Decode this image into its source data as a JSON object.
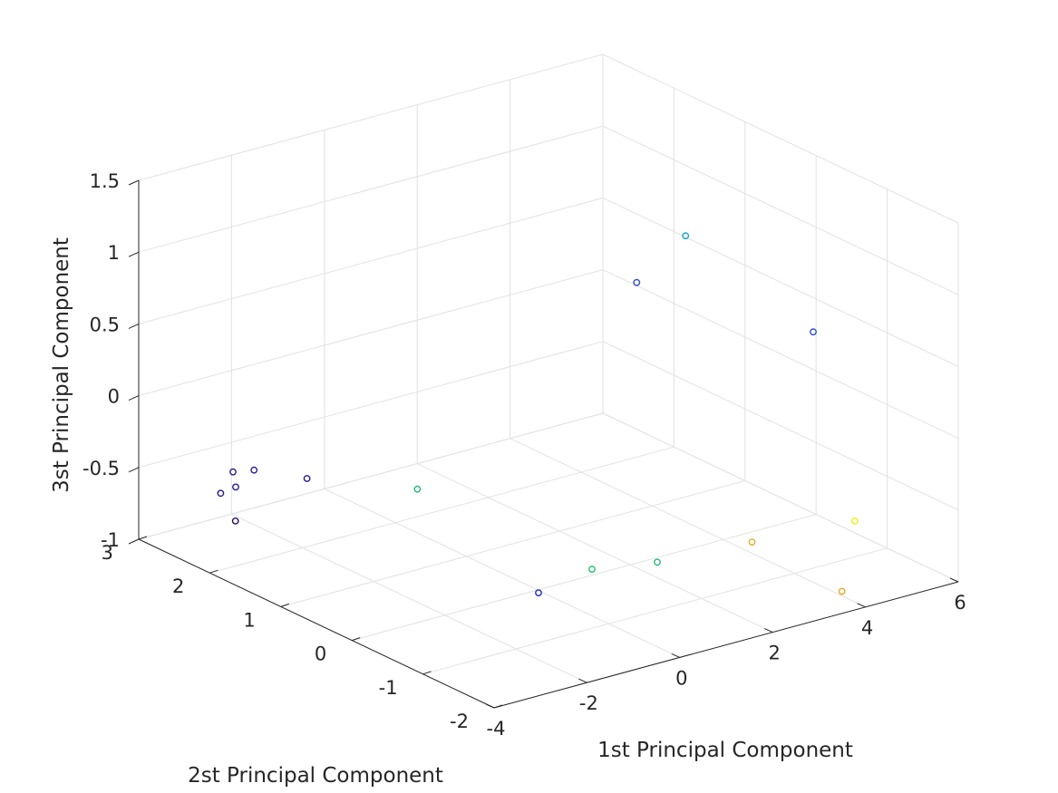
{
  "chart_data": {
    "type": "scatter",
    "view": "3d",
    "grid": true,
    "xlabel": "1st Principal Component",
    "ylabel": "2st Principal Component",
    "zlabel": "3st Principal Component",
    "xlim": [
      -4,
      6
    ],
    "ylim": [
      -2,
      3
    ],
    "zlim": [
      -1,
      1.5
    ],
    "xticks": [
      "-4",
      "-2",
      "0",
      "2",
      "4",
      "6"
    ],
    "yticks": [
      "-2",
      "-1",
      "0",
      "1",
      "2",
      "3"
    ],
    "zticks": [
      "-1",
      "-0.5",
      "0",
      "0.5",
      "1",
      "1.5"
    ],
    "points": [
      {
        "x": -3.6,
        "y": 1.9,
        "z": -0.65,
        "color": "#24115e"
      },
      {
        "x": -3.0,
        "y": 2.5,
        "z": -0.65,
        "color": "#27138c"
      },
      {
        "x": -3.9,
        "y": 1.7,
        "z": -0.34,
        "color": "#221ba0"
      },
      {
        "x": -3.2,
        "y": 1.9,
        "z": -0.33,
        "color": "#2b1c9e"
      },
      {
        "x": -1.6,
        "y": 2.2,
        "z": -0.6,
        "color": "#251b94"
      },
      {
        "x": -3.5,
        "y": 2.0,
        "z": -0.34,
        "color": "#2d1b8f"
      },
      {
        "x": -0.9,
        "y": -0.6,
        "z": -0.8,
        "color": "#1d2ab8"
      },
      {
        "x": -0.6,
        "y": 1.3,
        "z": -0.55,
        "color": "#23b773"
      },
      {
        "x": 0.1,
        "y": -0.7,
        "z": -0.7,
        "color": "#1fbf68"
      },
      {
        "x": 1.2,
        "y": -0.9,
        "z": -0.7,
        "color": "#2ab574"
      },
      {
        "x": 3.8,
        "y": 0.4,
        "z": 1.04,
        "color": "#16a3c7"
      },
      {
        "x": 2.9,
        "y": 0.5,
        "z": 0.77,
        "color": "#2849d8"
      },
      {
        "x": 4.1,
        "y": -1.2,
        "z": 0.72,
        "color": "#2e49dd"
      },
      {
        "x": 3.7,
        "y": -0.6,
        "z": -0.85,
        "color": "#e5aa21"
      },
      {
        "x": 3.8,
        "y": -1.8,
        "z": -0.92,
        "color": "#f0a51a"
      },
      {
        "x": 5.3,
        "y": -1.0,
        "z": -0.75,
        "color": "#f2f017"
      }
    ]
  }
}
